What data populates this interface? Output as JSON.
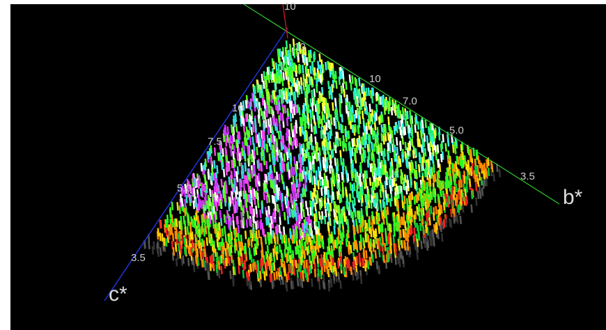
{
  "axes": {
    "a": {
      "ticks": [
        "10"
      ]
    },
    "b": {
      "name": "b*",
      "ticks": [
        "10",
        "10",
        "7.0",
        "5.0",
        "3.5"
      ]
    },
    "c": {
      "name": "c*",
      "ticks": [
        "10",
        "7.5",
        "5.0",
        "3.5"
      ]
    }
  }
}
